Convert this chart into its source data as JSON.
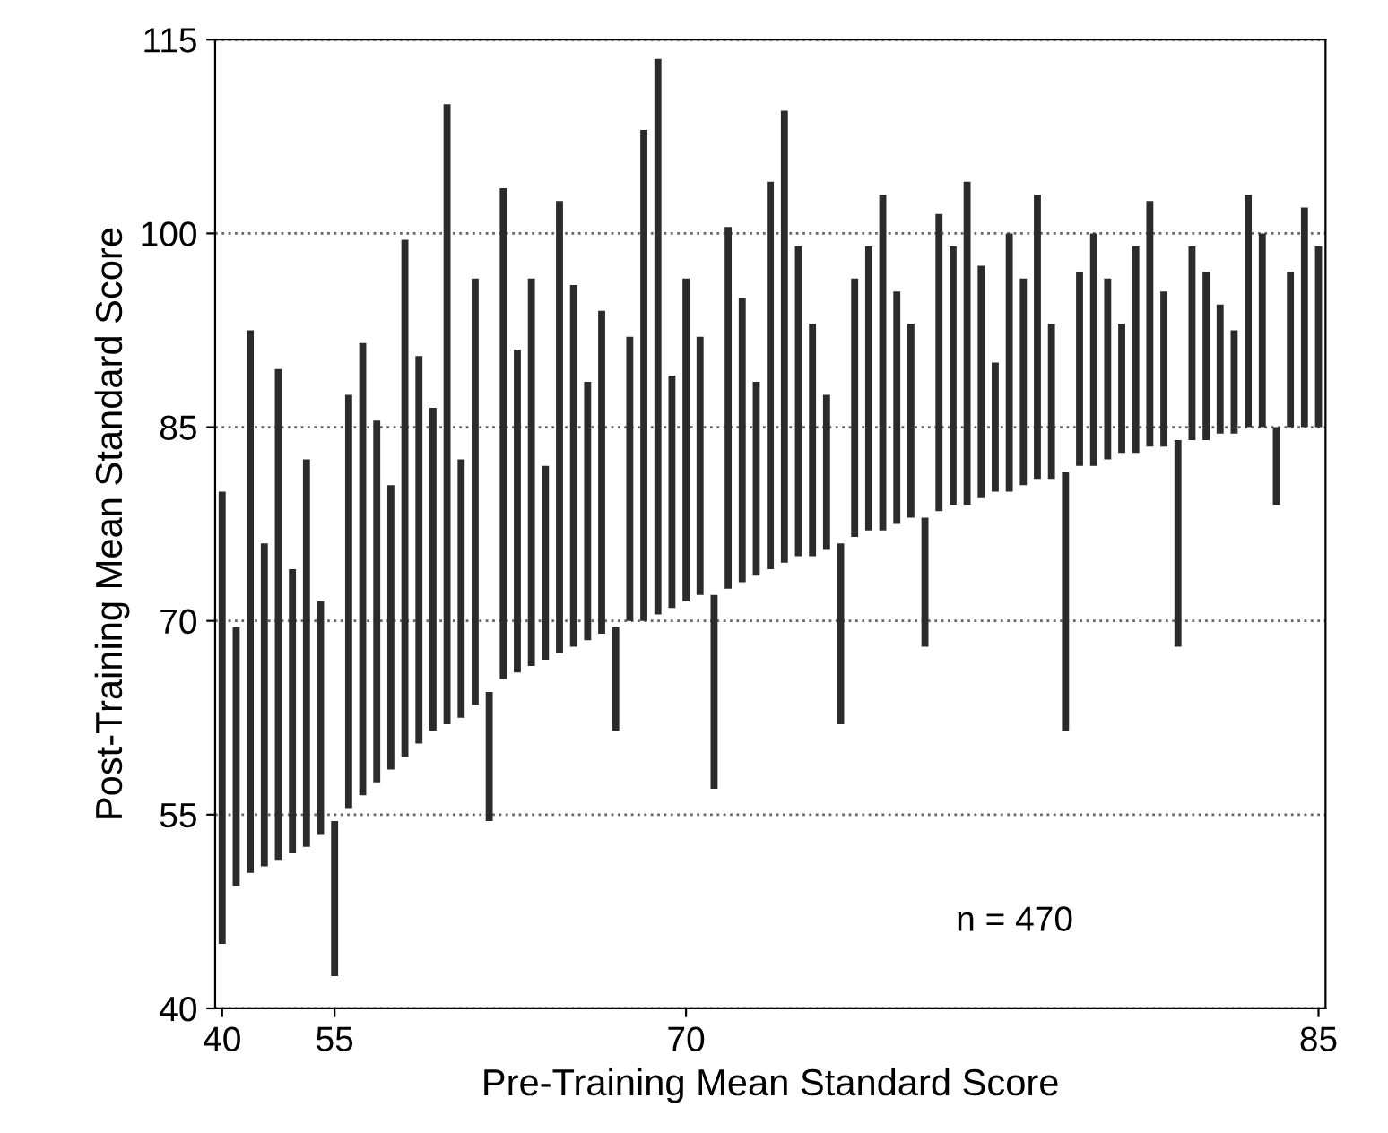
{
  "chart_data": {
    "type": "bar",
    "xlabel": "Pre-Training Mean Standard Score",
    "ylabel": "Post-Training Mean Standard Score",
    "annotations": [
      "n = 470"
    ],
    "categories": [
      "40",
      null,
      null,
      null,
      null,
      null,
      null,
      null,
      "55",
      null,
      null,
      null,
      null,
      null,
      null,
      null,
      null,
      null,
      null,
      null,
      null,
      null,
      null,
      null,
      null,
      null,
      null,
      null,
      null,
      null,
      null,
      null,
      null,
      "70",
      null,
      null,
      null,
      null,
      null,
      null,
      null,
      null,
      null,
      null,
      null,
      null,
      null,
      null,
      null,
      null,
      null,
      null,
      null,
      null,
      null,
      null,
      null,
      null,
      null,
      null,
      null,
      null,
      null,
      null,
      null,
      null,
      null,
      null,
      null,
      null,
      null,
      null,
      null,
      null,
      null,
      null,
      null,
      null,
      "85"
    ],
    "base": [
      45,
      49.5,
      50.5,
      51,
      51.5,
      52,
      52.5,
      53.5,
      54.5,
      55.5,
      56.5,
      57.5,
      58.5,
      59.5,
      60.5,
      61.5,
      62,
      62.5,
      63.5,
      64.5,
      65.5,
      66,
      66.5,
      67,
      67.5,
      68,
      68.5,
      69,
      69.5,
      70,
      70,
      70.5,
      71,
      71.5,
      72,
      72,
      72.5,
      73,
      73.5,
      74,
      74.5,
      75,
      75,
      75.5,
      76,
      76.5,
      77,
      77,
      77.5,
      78,
      78,
      78.5,
      79,
      79,
      79.5,
      80,
      80,
      80.5,
      81,
      81,
      81.5,
      82,
      82,
      82.5,
      83,
      83,
      83.5,
      83.5,
      84,
      84,
      84,
      84.5,
      84.5,
      85,
      85,
      85,
      85,
      85,
      85
    ],
    "values": [
      35,
      20,
      42,
      25,
      38,
      22,
      30,
      18,
      -12,
      32,
      35,
      28,
      22,
      40,
      30,
      25,
      48,
      20,
      33,
      -10,
      38,
      25,
      30,
      15,
      35,
      28,
      20,
      25,
      -8,
      22,
      38,
      43,
      18,
      25,
      20,
      -15,
      28,
      22,
      15,
      30,
      35,
      24,
      18,
      12,
      -14,
      20,
      22,
      26,
      18,
      15,
      -10,
      23,
      20,
      25,
      18,
      10,
      20,
      16,
      22,
      12,
      -20,
      15,
      18,
      14,
      10,
      16,
      19,
      12,
      -16,
      15,
      13,
      10,
      8,
      18,
      15,
      -6,
      12,
      17,
      14
    ],
    "color": "#2b2b2b",
    "ylim": [
      40,
      115
    ],
    "yticks": [
      40,
      55,
      70,
      85,
      100,
      115
    ],
    "grid": "y",
    "line_style": "dotted"
  }
}
